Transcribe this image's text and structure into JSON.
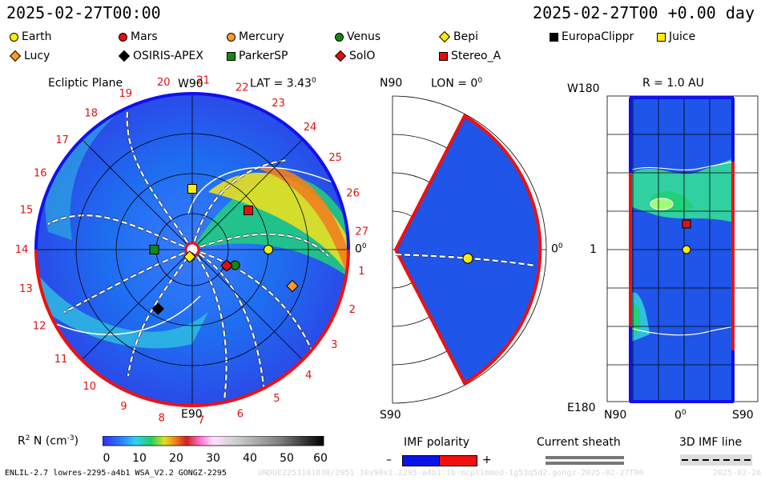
{
  "header": {
    "left_time": "2025-02-27T00:00",
    "right_time": "2025-02-27T00 +0.00 day"
  },
  "legend": [
    {
      "name": "Earth",
      "marker": "circle",
      "color": "#ffee00"
    },
    {
      "name": "Mars",
      "marker": "circle",
      "color": "#e01010"
    },
    {
      "name": "Mercury",
      "marker": "circle",
      "color": "#ff9a20"
    },
    {
      "name": "Venus",
      "marker": "circle",
      "color": "#118a11"
    },
    {
      "name": "Bepi",
      "marker": "diamond",
      "color": "#ffee00"
    },
    {
      "name": "EuropaClippr",
      "marker": "square",
      "color": "#000000"
    },
    {
      "name": "Juice",
      "marker": "square",
      "color": "#ffee00"
    },
    {
      "name": "Lucy",
      "marker": "diamond",
      "color": "#ff9a20"
    },
    {
      "name": "OSIRIS-APEX",
      "marker": "diamond",
      "color": "#000000"
    },
    {
      "name": "ParkerSP",
      "marker": "square",
      "color": "#118a11"
    },
    {
      "name": "SolO",
      "marker": "diamond",
      "color": "#e01010"
    },
    {
      "name": "Stereo_A",
      "marker": "square",
      "color": "#e01010"
    }
  ],
  "ecliptic": {
    "title": "Ecliptic Plane",
    "top_label": "W90",
    "lat_label": "LAT = 3.43",
    "lat_sup": "0",
    "right_label": "0",
    "right_sup": "0",
    "bottom_label": "E90",
    "carrington_labels": [
      "1",
      "2",
      "3",
      "4",
      "5",
      "6",
      "7",
      "8",
      "9",
      "10",
      "11",
      "12",
      "13",
      "14",
      "15",
      "16",
      "17",
      "18",
      "19",
      "20",
      "21",
      "22",
      "23",
      "24",
      "25",
      "26",
      "27"
    ]
  },
  "meridional": {
    "top_left": "N90",
    "lon_label": "LON = 0",
    "lon_sup": "0",
    "right_label": "0",
    "right_sup": "0",
    "bottom_left": "S90"
  },
  "sphere": {
    "title": "R = 1.0 AU",
    "top_left": "W180",
    "mid_left": "1",
    "bottom_left": "E180",
    "x_labels": [
      "N90",
      "0",
      "S90"
    ],
    "x_mid_sup": "0"
  },
  "colorbar": {
    "label": "R",
    "label_sup": "2",
    "label_rest": " N (cm",
    "label_unit_sup": "-3",
    "label_end": ")",
    "ticks": [
      "0",
      "10",
      "20",
      "30",
      "40",
      "50",
      "60"
    ],
    "range": [
      0,
      60
    ]
  },
  "imf_polarity": {
    "title": "IMF polarity",
    "minus": "–",
    "plus": "+",
    "neg_color": "#0a14e6",
    "pos_color": "#f01010"
  },
  "current_sheath": {
    "title": "Current sheath"
  },
  "imf_line": {
    "title": "3D IMF line"
  },
  "footer": {
    "left": "ENLIL-2.7 lowres-2295-a4b1 WSA_V2.2 GONGZ-2295",
    "faint": "UNDUE2253181830/2951 30x90x1.2295-a4b1.1b-mcplimmed-1g53q5d2.gongz-2025-02-27T00",
    "right": "2025-02-26"
  },
  "chart_data": {
    "type": "heatmap",
    "quantity": "R^2 N (cm^-3)",
    "color_range": [
      0,
      60
    ],
    "bodies_ecliptic": [
      {
        "name": "Earth",
        "r_au": 1.0,
        "lon_deg": 0
      },
      {
        "name": "Mars",
        "r_au": 0.5,
        "lon_deg": -25
      },
      {
        "name": "Mercury",
        "r_au": 0.1,
        "lon_deg": -105
      },
      {
        "name": "Venus",
        "r_au": 0.6,
        "lon_deg": -20
      },
      {
        "name": "Bepi",
        "r_au": 0.1,
        "lon_deg": -110
      },
      {
        "name": "Juice",
        "r_au": 0.8,
        "lon_deg": 90
      },
      {
        "name": "Lucy",
        "r_au": 1.4,
        "lon_deg": -20
      },
      {
        "name": "OSIRIS-APEX",
        "r_au": 0.9,
        "lon_deg": -120
      },
      {
        "name": "ParkerSP",
        "r_au": 0.5,
        "lon_deg": 180
      },
      {
        "name": "SolO",
        "r_au": 0.5,
        "lon_deg": -25
      },
      {
        "name": "Stereo_A",
        "r_au": 0.9,
        "lon_deg": 35
      }
    ]
  }
}
